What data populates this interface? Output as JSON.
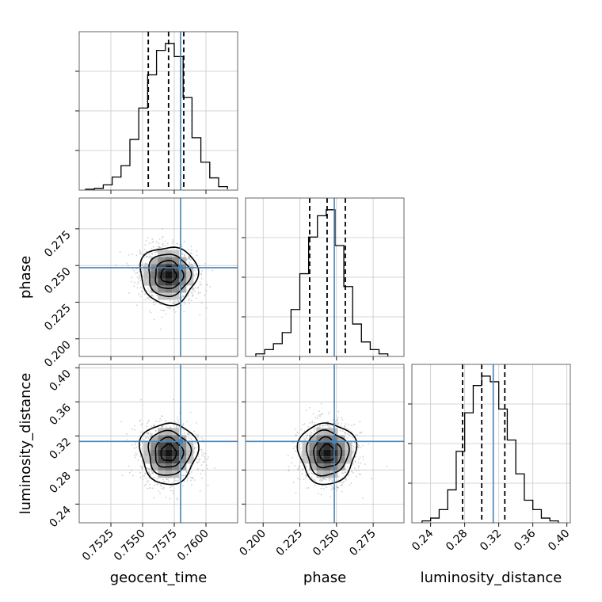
{
  "chart_data": {
    "type": "corner",
    "parameters": [
      {
        "name": "geocent_time",
        "label": "geocent_time",
        "range": [
          0.75,
          0.7625
        ],
        "ticks": [
          "0.7525",
          "0.7550",
          "0.7575",
          "0.7600"
        ],
        "truth": 0.758,
        "quantiles": [
          0.75545,
          0.75705,
          0.75825
        ],
        "hist_bins": [
          0.7505,
          0.7512,
          0.7519,
          0.7526,
          0.7533,
          0.754,
          0.7547,
          0.7554,
          0.7561,
          0.7568,
          0.7575,
          0.7582,
          0.7589,
          0.7596,
          0.7603,
          0.761,
          0.7617
        ],
        "hist_counts": [
          1,
          2,
          6,
          15,
          28,
          58,
          94,
          132,
          160,
          168,
          153,
          106,
          60,
          32,
          14,
          4,
          1
        ]
      },
      {
        "name": "phase",
        "label": "phase",
        "range": [
          0.188,
          0.296
        ],
        "ticks": [
          "0.200",
          "0.225",
          "0.250",
          "0.275"
        ],
        "truth": 0.2485,
        "quantiles": [
          0.2317,
          0.2436,
          0.256
        ],
        "hist_bins": [
          0.195,
          0.201,
          0.207,
          0.213,
          0.219,
          0.225,
          0.231,
          0.237,
          0.243,
          0.249,
          0.255,
          0.261,
          0.267,
          0.273,
          0.279,
          0.285
        ],
        "hist_counts": [
          3,
          8,
          15,
          28,
          55,
          97,
          140,
          165,
          172,
          130,
          82,
          38,
          17,
          8,
          3
        ]
      },
      {
        "name": "luminosity_distance",
        "label": "luminosity_distance",
        "range": [
          0.218,
          0.404
        ],
        "ticks": [
          "0.24",
          "0.28",
          "0.32",
          "0.36",
          "0.40"
        ],
        "truth": 0.3135,
        "quantiles": [
          0.2775,
          0.3,
          0.3271
        ],
        "hist_bins": [
          0.23,
          0.24,
          0.25,
          0.26,
          0.27,
          0.28,
          0.29,
          0.3,
          0.31,
          0.32,
          0.33,
          0.34,
          0.35,
          0.36,
          0.37,
          0.38,
          0.39
        ],
        "hist_counts": [
          2,
          5,
          14,
          35,
          76,
          117,
          146,
          156,
          150,
          121,
          88,
          52,
          24,
          14,
          5,
          2
        ]
      }
    ],
    "pair_ticks": {
      "phase": [
        "0.200",
        "0.225",
        "0.250",
        "0.275"
      ],
      "luminosity_distance": [
        "0.24",
        "0.28",
        "0.32",
        "0.36",
        "0.40"
      ]
    },
    "pairs": [
      {
        "x": "geocent_time",
        "y": "phase",
        "center": [
          0.75705,
          0.2436
        ],
        "spread": [
          0.0011,
          0.0095
        ],
        "corr": -0.15
      },
      {
        "x": "geocent_time",
        "y": "luminosity_distance",
        "center": [
          0.75705,
          0.3
        ],
        "spread": [
          0.0011,
          0.0175
        ],
        "corr": 0.0
      },
      {
        "x": "phase",
        "y": "luminosity_distance",
        "center": [
          0.2436,
          0.3
        ],
        "spread": [
          0.0095,
          0.0175
        ],
        "corr": 0.0
      }
    ],
    "grid": true,
    "colors": {
      "truth": "#4682b4",
      "line": "#000000",
      "grid": "#c8c8c8",
      "frame": "#555555"
    }
  }
}
